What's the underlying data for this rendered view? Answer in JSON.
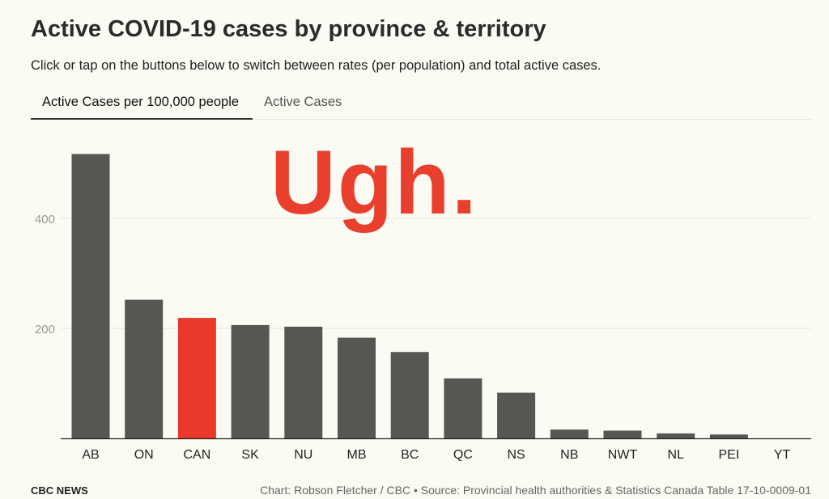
{
  "title": "Active COVID-19 cases by province & territory",
  "subtitle": "Click or tap on the buttons below to switch between rates (per population) and total active cases.",
  "tabs": [
    {
      "label": "Active Cases per 100,000 people",
      "selected": true
    },
    {
      "label": "Active Cases",
      "selected": false
    }
  ],
  "annotation": "Ugh.",
  "footer": {
    "brand": "CBC NEWS",
    "credit": "Chart: Robson Fletcher / CBC • Source: Provincial health authorities & Statistics Canada Table 17-10-0009-01"
  },
  "colors": {
    "bar": "#575652",
    "highlight": "#e8392a",
    "annotation": "#e8402c",
    "grid": "#e4e4dc",
    "tick_label": "#9a9a94"
  },
  "chart_data": {
    "type": "bar",
    "categories": [
      "AB",
      "ON",
      "CAN",
      "SK",
      "NU",
      "MB",
      "BC",
      "QC",
      "NS",
      "NB",
      "NWT",
      "NL",
      "PEI",
      "YT"
    ],
    "values": [
      517,
      252,
      219,
      206,
      203,
      183,
      157,
      109,
      83,
      16,
      14,
      9,
      7,
      0
    ],
    "highlight": [
      "CAN"
    ],
    "yticks": [
      200,
      400
    ],
    "ylim": [
      0,
      530
    ],
    "grid": true,
    "title": "",
    "xlabel": "",
    "ylabel": ""
  }
}
